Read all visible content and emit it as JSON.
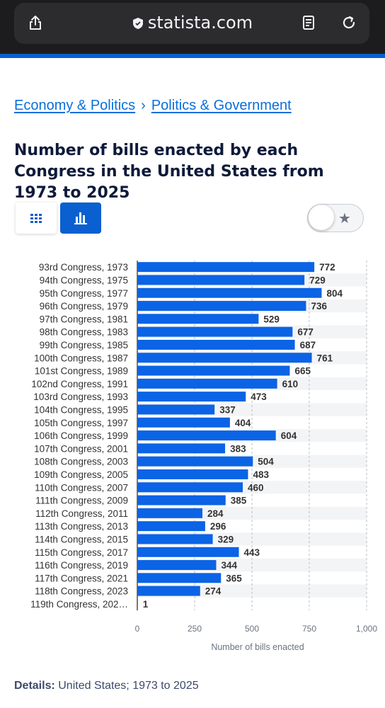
{
  "browser": {
    "url": "statista.com"
  },
  "breadcrumb": {
    "items": [
      "Economy & Politics",
      "Politics & Government"
    ],
    "separator": "›"
  },
  "page_title": "Number of bills enacted by each Congress in the United States from 1973 to 2025",
  "controls": {
    "table_view_icon": "grid-icon",
    "chart_view_icon": "bar-chart-icon",
    "favorite_icon": "star-icon"
  },
  "details": {
    "label": "Details:",
    "value": "United States; 1973 to 2025"
  },
  "colors": {
    "bar": "#0b63e5",
    "accent": "#0a60d0",
    "text": "#0e1a3a"
  },
  "chart_data": {
    "type": "bar",
    "orientation": "horizontal",
    "categories": [
      "93rd Congress, 1973",
      "94th Congress, 1975",
      "95th Congress, 1977",
      "96th Congress, 1979",
      "97th Congress, 1981",
      "98th Congress, 1983",
      "99th Congress, 1985",
      "100th Congress, 1987",
      "101st Congress, 1989",
      "102nd Congress, 1991",
      "103rd Congress, 1993",
      "104th Congress, 1995",
      "105th Congress, 1997",
      "106th Congress, 1999",
      "107th Congress, 2001",
      "108th Congress, 2003",
      "109th Congress, 2005",
      "110th Congress, 2007",
      "111th Congress, 2009",
      "112th Congress, 2011",
      "113th Congress, 2013",
      "114th Congress, 2015",
      "115th Congress, 2017",
      "116th Congress, 2019",
      "117th Congress, 2021",
      "118th Congress, 2023",
      "119th Congress, 202…"
    ],
    "values": [
      772,
      729,
      804,
      736,
      529,
      677,
      687,
      761,
      665,
      610,
      473,
      337,
      404,
      604,
      383,
      504,
      483,
      460,
      385,
      284,
      296,
      329,
      443,
      344,
      365,
      274,
      1
    ],
    "xlabel": "Number of bills enacted",
    "xlim": [
      0,
      1000
    ],
    "xticks": [
      "0",
      "250",
      "500",
      "750",
      "1,000"
    ],
    "grid": true
  }
}
